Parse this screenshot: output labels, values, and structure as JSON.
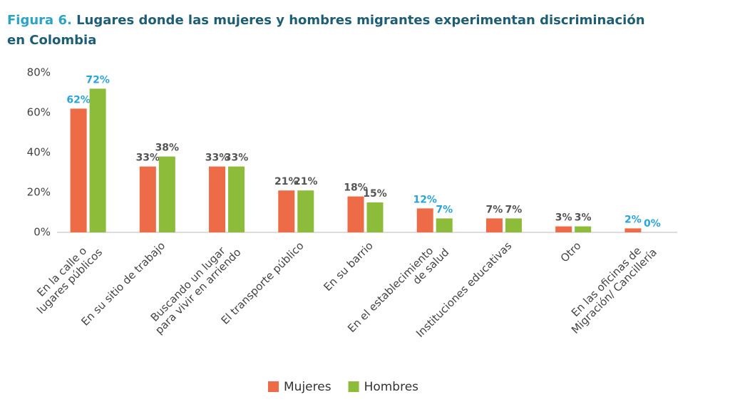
{
  "chart_data": {
    "type": "bar",
    "figure_label": "Figura 6.",
    "title": "Lugares donde las mujeres y hombres migrantes experimentan discriminación en Colombia",
    "categories": [
      "En la calle o\nlugares públicos",
      "En su sitio de trabajo",
      "Buscando un lugar\npara vivir en arriendo",
      "El transporte público",
      "En su barrio",
      "En el establecimiento\nde salud",
      "Instituciones educativas",
      "Otro",
      "En las oficinas de\nMigración/ Cancillería"
    ],
    "series": [
      {
        "name": "Mujeres",
        "color": "#ee6b47",
        "values": [
          62,
          33,
          33,
          21,
          18,
          12,
          7,
          3,
          2
        ],
        "value_labels": [
          "62%",
          "33%",
          "33%",
          "21%",
          "18%",
          "12%",
          "7%",
          "3%",
          "2%"
        ],
        "label_colors": [
          "#2aa3d8",
          "#555555",
          "#555555",
          "#555555",
          "#555555",
          "#2aa3d8",
          "#555555",
          "#555555",
          "#2aa3d8"
        ]
      },
      {
        "name": "Hombres",
        "color": "#8dbb3a",
        "values": [
          72,
          38,
          33,
          21,
          15,
          7,
          7,
          3,
          0
        ],
        "value_labels": [
          "72%",
          "38%",
          "33%",
          "21%",
          "15%",
          "7%",
          "7%",
          "3%",
          "0%"
        ],
        "label_colors": [
          "#2aa3d8",
          "#555555",
          "#555555",
          "#555555",
          "#555555",
          "#2aa3d8",
          "#555555",
          "#555555",
          "#2aa3d8"
        ]
      }
    ],
    "ylim": [
      0,
      80
    ],
    "yticks": [
      {
        "value": 0,
        "label": "0%"
      },
      {
        "value": 20,
        "label": "20%"
      },
      {
        "value": 40,
        "label": "40%"
      },
      {
        "value": 60,
        "label": "60%"
      },
      {
        "value": 80,
        "label": "80%"
      }
    ],
    "grid": false,
    "legend": "bottom"
  }
}
